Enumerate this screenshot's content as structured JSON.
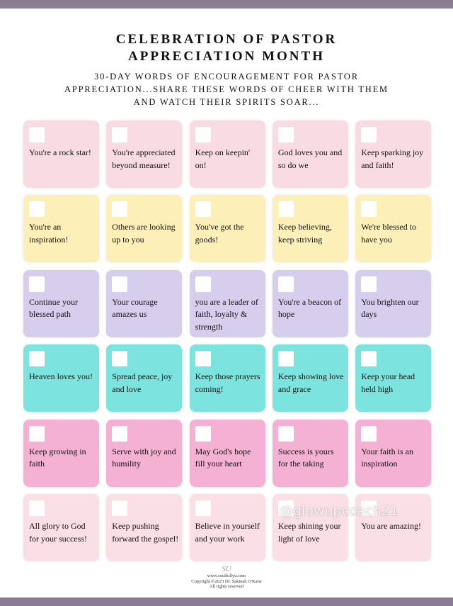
{
  "header": {
    "title_lines": [
      "CELEBRATION OF PASTOR",
      "APPRECIATION MONTH"
    ],
    "subtitle_lines": [
      "30-DAY WORDS OF ENCOURAGEMENT FOR PASTOR",
      "APPRECIATION...SHARE THESE WORDS OF CHEER WITH THEM",
      "AND WATCH THEIR SPIRITS SOAR..."
    ]
  },
  "cards": [
    [
      "You're a rock star!",
      "You're appreciated beyond measure!",
      "Keep on keepin' on!",
      "God loves you and so do we",
      "Keep sparking joy and faith!"
    ],
    [
      "You're an inspiration!",
      "Others are looking up to you",
      "You've got the goods!",
      "Keep believing, keep striving",
      "We're blessed to have you"
    ],
    [
      "Continue your blessed path",
      "Your courage amazes us",
      "you are a leader of faith, loyalty & strength",
      "You're a beacon of hope",
      "You brighten our days"
    ],
    [
      "Heaven loves you!",
      "Spread peace, joy and love",
      "Keep those prayers coming!",
      "Keep showing love and grace",
      "Keep your head held high"
    ],
    [
      "Keep growing in faith",
      "Serve with joy and humility",
      "May God's hope fill your heart",
      "Success is yours for the taking",
      "Your faith is an inspiration"
    ],
    [
      "All glory to God for your success!",
      "Keep pushing forward the gospel!",
      "Believe in yourself and your work",
      "Keep shining your light of love",
      "You are amazing!"
    ]
  ],
  "footer": {
    "logo": "SU",
    "website": "www.soulfullyu.com",
    "copyright": "Copyright ©2023 Dr. Sakinah O'Kane",
    "rights": "All rights reserved"
  },
  "watermark": "@glowupcoach21"
}
